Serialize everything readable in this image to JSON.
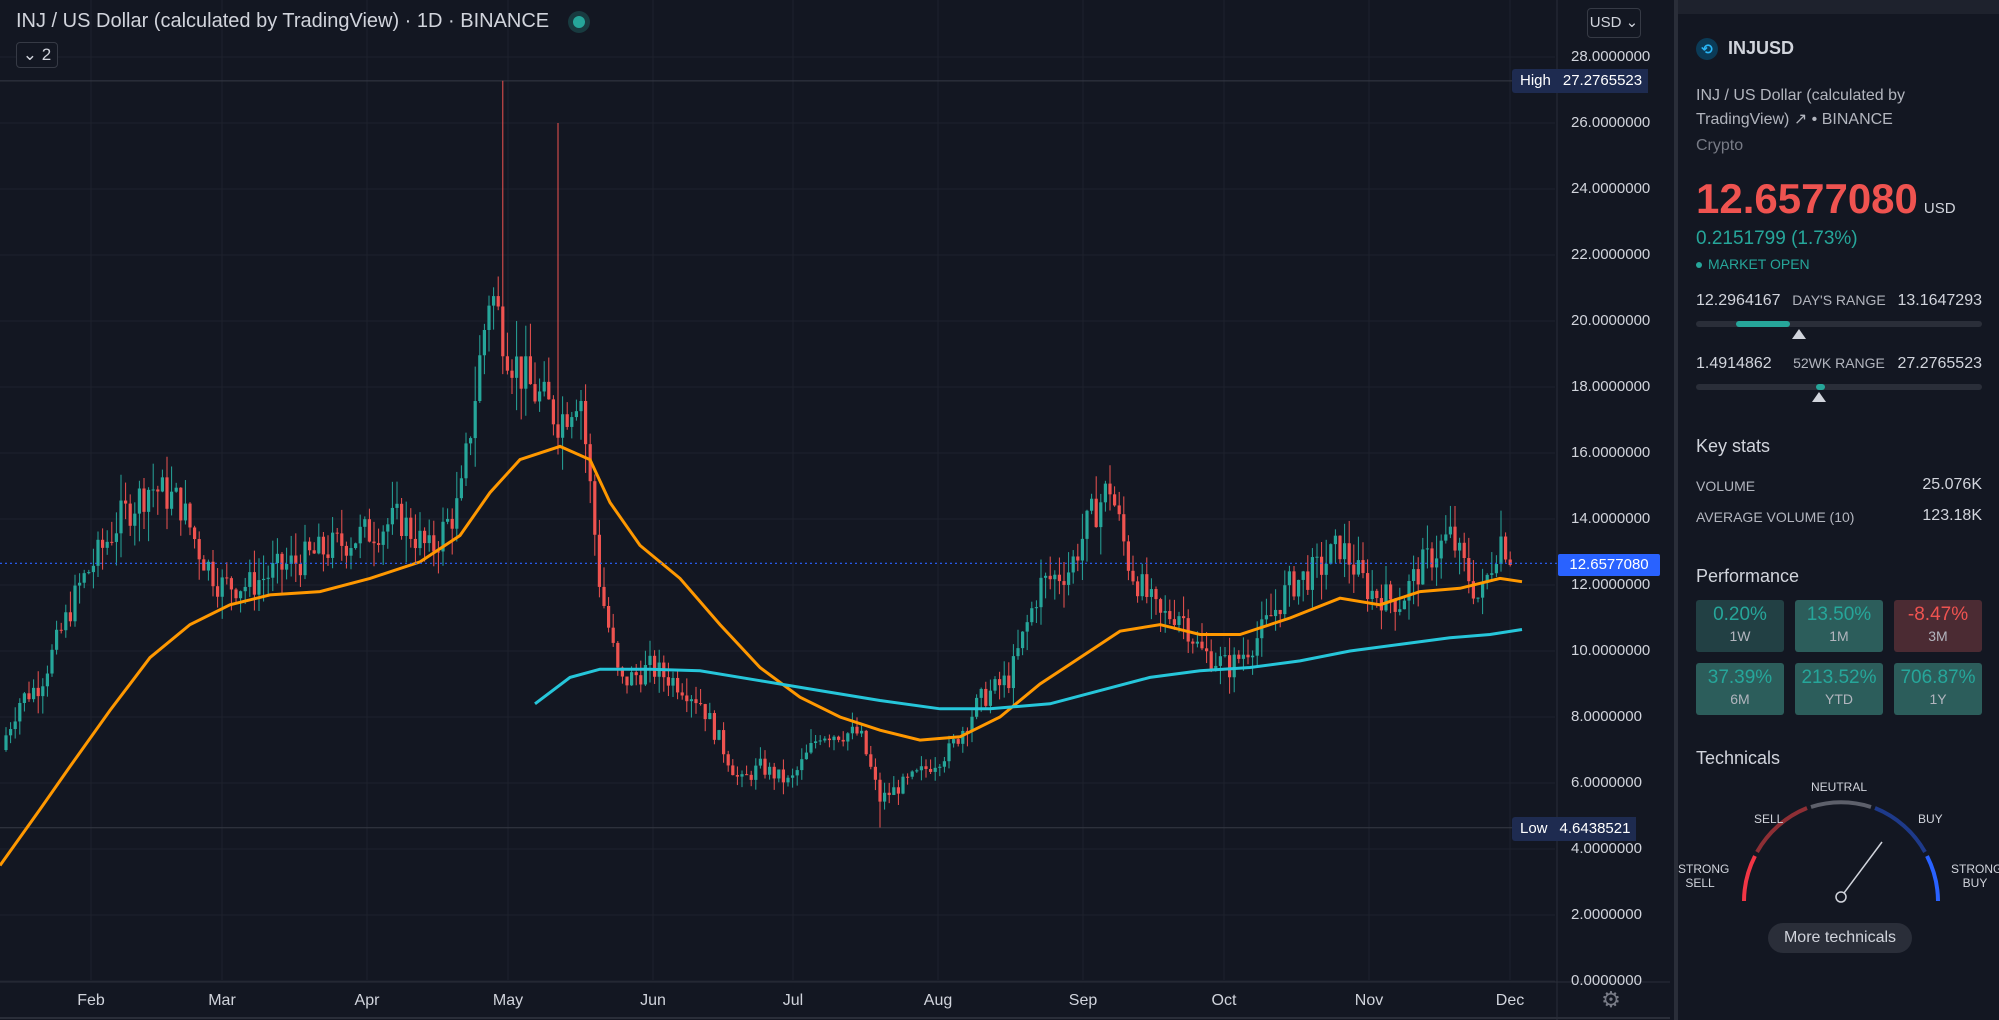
{
  "header": {
    "title": "INJ / US Dollar (calculated by TradingView) · 1D · BINANCE",
    "collapse_label": "2",
    "currency_button": "USD"
  },
  "price_axis": {
    "ticks": [
      "28.0000000",
      "26.0000000",
      "24.0000000",
      "22.0000000",
      "20.0000000",
      "18.0000000",
      "16.0000000",
      "14.0000000",
      "12.0000000",
      "10.0000000",
      "8.0000000",
      "6.0000000",
      "4.0000000",
      "2.0000000",
      "0.0000000"
    ],
    "high_label": "High",
    "high_value": "27.2765523",
    "low_label": "Low",
    "low_value": "4.6438521",
    "last_price": "12.6577080"
  },
  "time_axis": [
    "Feb",
    "Mar",
    "Apr",
    "May",
    "Jun",
    "Jul",
    "Aug",
    "Sep",
    "Oct",
    "Nov",
    "Dec"
  ],
  "colors": {
    "up": "#26a69a",
    "down": "#ef5350",
    "ma_fast": "#ff9800",
    "ma_slow": "#26c6da",
    "background": "#131722",
    "last_price_line": "#2962ff"
  },
  "chart_data": {
    "type": "candlestick",
    "y_range": [
      0,
      28
    ],
    "high": 27.2765523,
    "low": 4.6438521,
    "last": 12.657708,
    "x_ticks": [
      "Feb",
      "Mar",
      "Apr",
      "May",
      "Jun",
      "Jul",
      "Aug",
      "Sep",
      "Oct",
      "Nov",
      "Dec"
    ],
    "ma_fast_path_values": [
      3.5,
      5.2,
      6.5,
      8.2,
      9.8,
      10.6,
      11.2,
      11.6,
      11.8,
      11.9,
      12.1,
      12.3,
      12.6,
      13.2,
      15.0,
      16.2,
      15.8,
      13.5,
      12.4,
      11.2,
      9.9,
      8.8,
      8.0,
      7.5,
      7.2,
      7.3,
      8.0,
      9.2,
      10.3,
      10.8,
      10.6,
      10.4,
      10.6,
      11.3,
      11.2,
      11.6,
      11.9,
      12.1
    ]
  },
  "sidebar": {
    "symbol": "INJUSD",
    "description_line1": "INJ / US Dollar (calculated by",
    "description_line2": "TradingView) ↗ • BINANCE",
    "category": "Crypto",
    "price": "12.6577080",
    "price_currency": "USD",
    "change": "0.2151799 (1.73%)",
    "market_status": "MARKET OPEN",
    "days_range": {
      "low": "12.2964167",
      "label": "DAY'S RANGE",
      "high": "13.1647293",
      "fill_from": 0.14,
      "fill_to": 0.33,
      "position": 0.36
    },
    "wk52_range": {
      "low": "1.4914862",
      "label": "52WK RANGE",
      "high": "27.2765523",
      "fill_from": 0.42,
      "fill_to": 0.45,
      "position": 0.43
    },
    "key_stats_title": "Key stats",
    "volume_label": "VOLUME",
    "volume_value": "25.076K",
    "avg_volume_label": "AVERAGE VOLUME (10)",
    "avg_volume_value": "123.18K",
    "performance_title": "Performance",
    "performance": [
      {
        "value": "0.20%",
        "period": "1W",
        "tone": "pos"
      },
      {
        "value": "13.50%",
        "period": "1M",
        "tone": "pos2"
      },
      {
        "value": "-8.47%",
        "period": "3M",
        "tone": "neg"
      },
      {
        "value": "37.39%",
        "period": "6M",
        "tone": "pos2"
      },
      {
        "value": "213.52%",
        "period": "YTD",
        "tone": "pos2"
      },
      {
        "value": "706.87%",
        "period": "1Y",
        "tone": "pos2"
      }
    ],
    "technicals_title": "Technicals",
    "gauge": {
      "neutral": "NEUTRAL",
      "sell": "SELL",
      "buy": "BUY",
      "strong_sell_1": "STRONG",
      "strong_sell_2": "SELL",
      "strong_buy_1": "STRONG",
      "strong_buy_2": "BUY"
    },
    "more_technicals": "More technicals"
  }
}
